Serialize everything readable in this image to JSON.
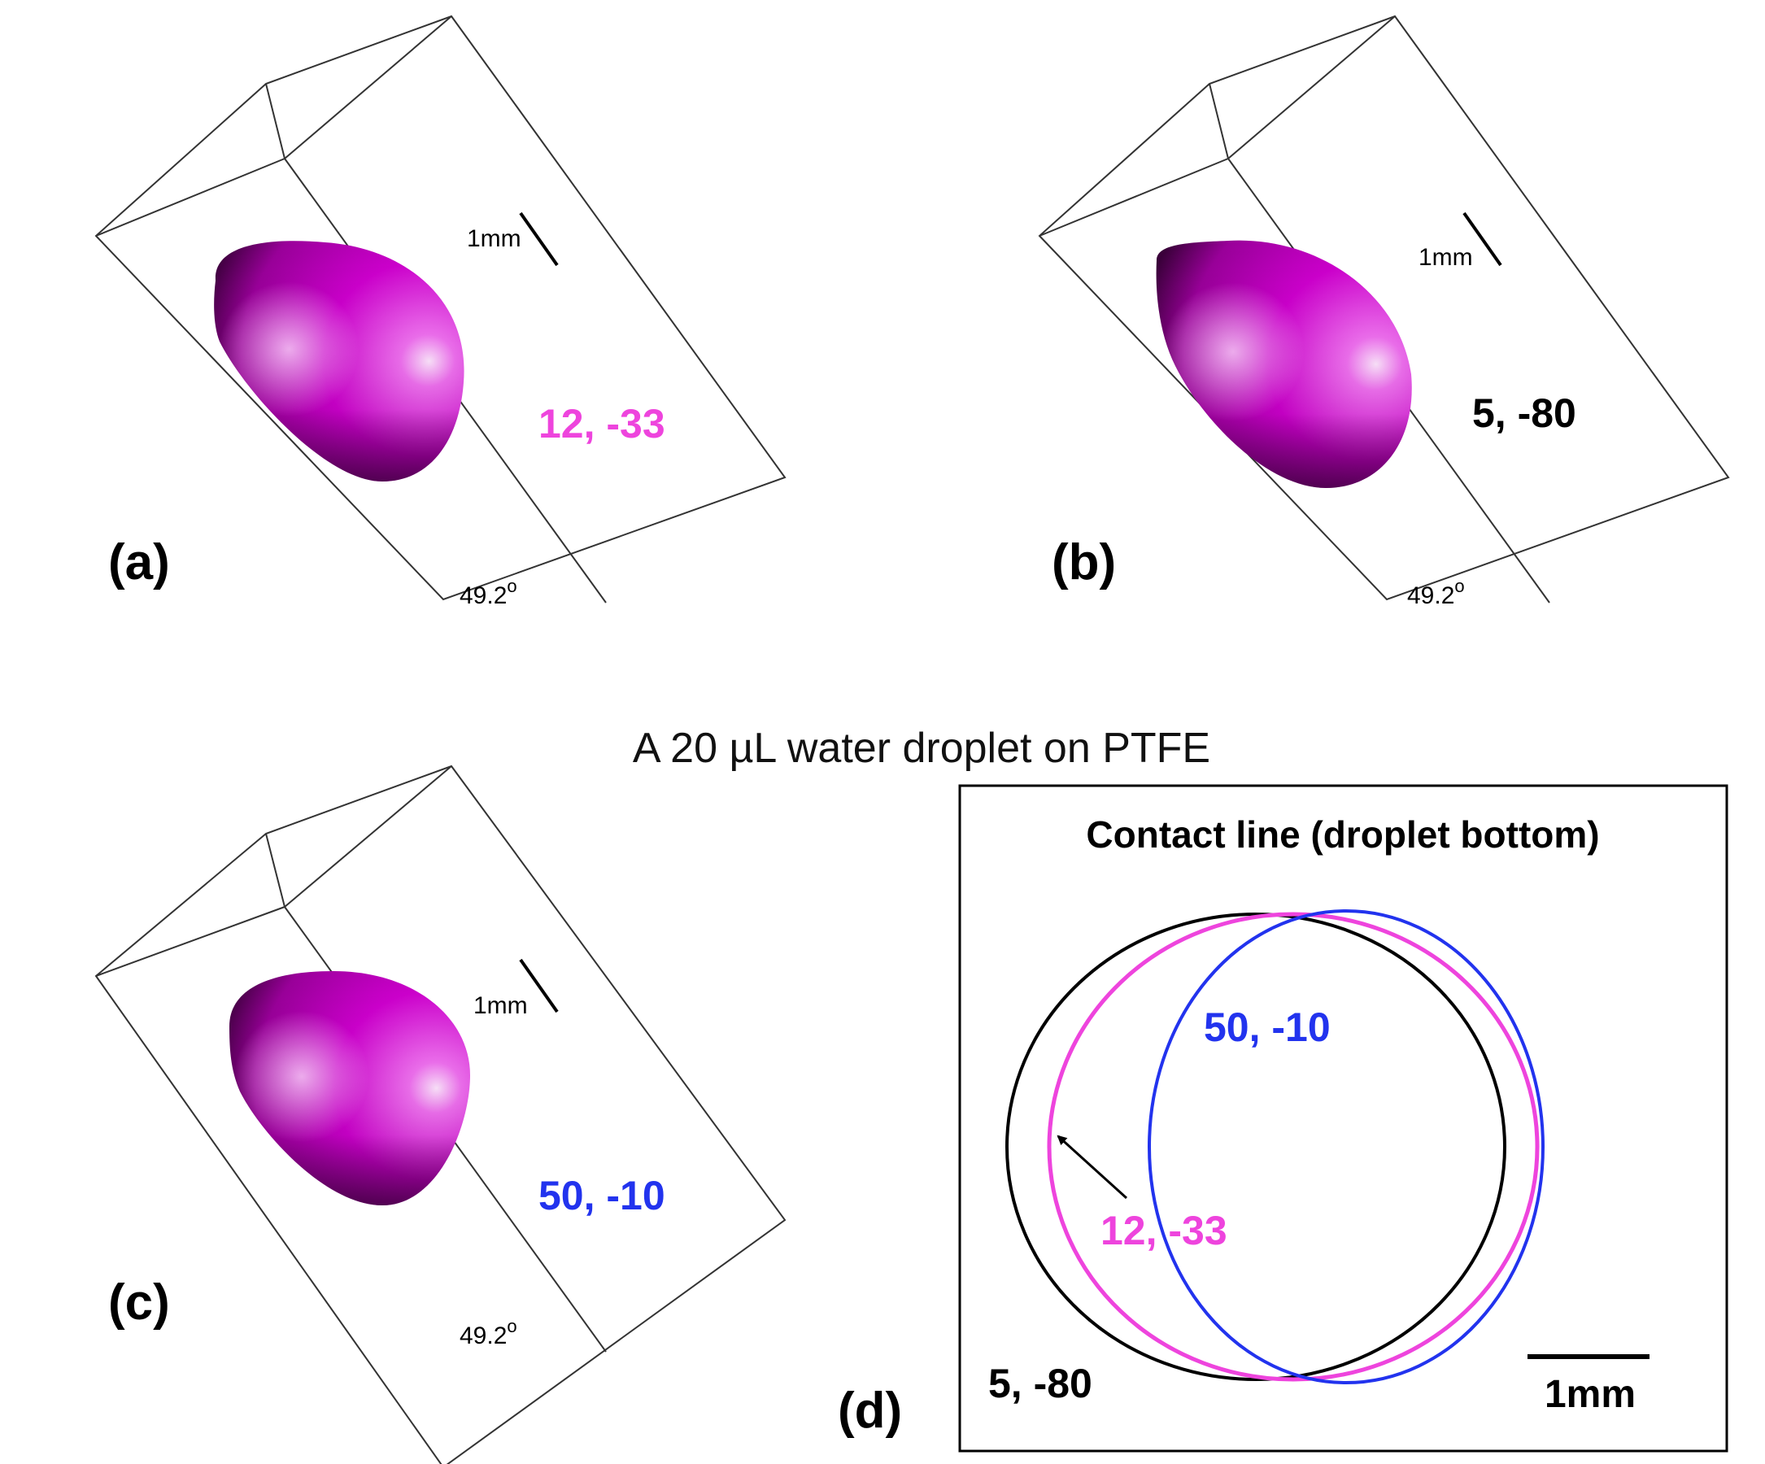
{
  "caption": "A 20 µL water droplet on PTFE",
  "panels": [
    {
      "letter": "(a)",
      "pair": "12, -33",
      "pair_color": "#ee44dd",
      "scale": "1mm",
      "angle": "49.2",
      "angle_sup": "o"
    },
    {
      "letter": "(b)",
      "pair": "5, -80",
      "pair_color": "#000000",
      "scale": "1mm",
      "angle": "49.2",
      "angle_sup": "o"
    },
    {
      "letter": "(c)",
      "pair": "50, -10",
      "pair_color": "#2233ee",
      "scale": "1mm",
      "angle": "49.2",
      "angle_sup": "o"
    }
  ],
  "contact_panel": {
    "letter": "(d)",
    "title": "Contact line (droplet bottom)",
    "curves": [
      {
        "label": "5, -80",
        "color": "#000000"
      },
      {
        "label": "12, -33",
        "color": "#ee44dd"
      },
      {
        "label": "50, -10",
        "color": "#2233ee"
      }
    ],
    "scale_bar": "1mm"
  },
  "colors": {
    "droplet": "#cc00cc",
    "droplet_light": "#ffd0ff",
    "droplet_dark": "#330033"
  }
}
